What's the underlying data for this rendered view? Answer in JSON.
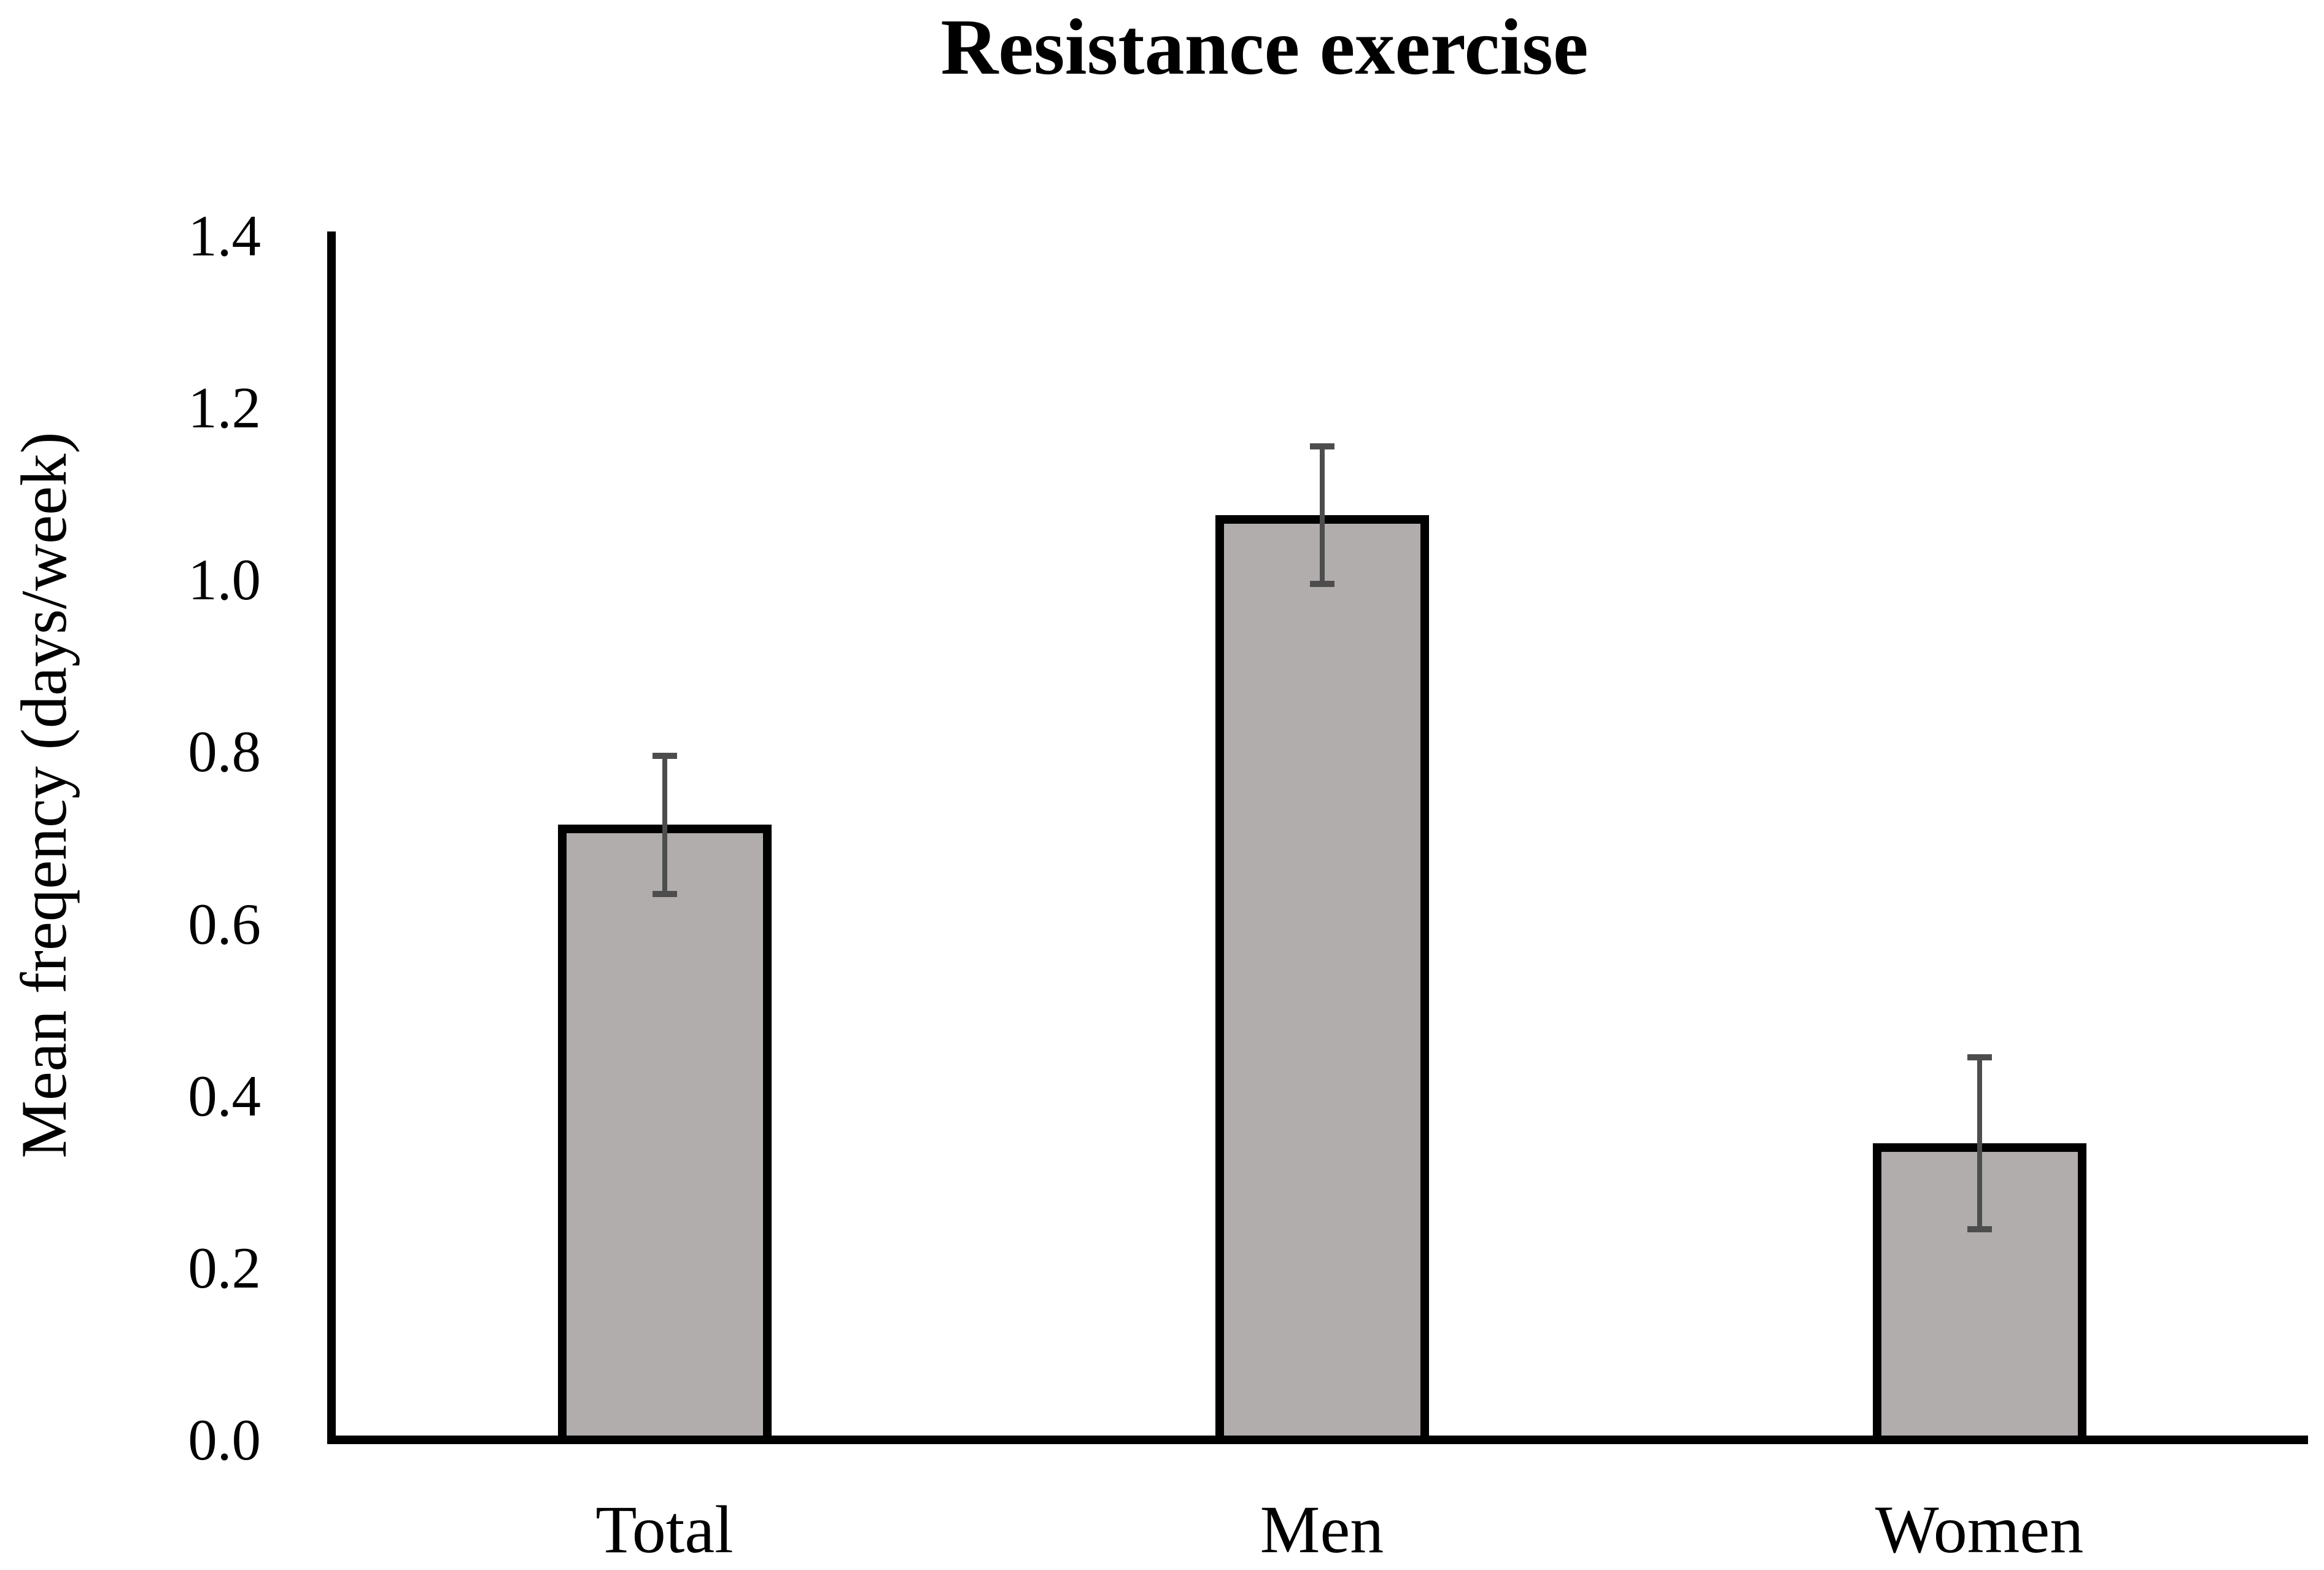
{
  "chart_data": {
    "type": "bar",
    "title": "Resistance exercise",
    "ylabel": "Mean freqency (days/week)",
    "xlabel": "",
    "categories": [
      "Total",
      "Men",
      "Women"
    ],
    "values": [
      0.71,
      1.07,
      0.34
    ],
    "errors": [
      0.08,
      0.08,
      0.1
    ],
    "ylim": [
      0.0,
      1.4
    ],
    "yticks": [
      0.0,
      0.2,
      0.4,
      0.6,
      0.8,
      1.0,
      1.2,
      1.4
    ],
    "ytick_labels": [
      "0.0",
      "0.2",
      "0.4",
      "0.6",
      "0.8",
      "1.0",
      "1.2",
      "1.4"
    ],
    "grid": false,
    "legend": null,
    "colors": {
      "bar_fill": "#b0adac",
      "bar_border": "#000000",
      "error_bar": "#4d4d4d",
      "axis": "#000000",
      "text": "#000000",
      "background": "#ffffff"
    }
  }
}
